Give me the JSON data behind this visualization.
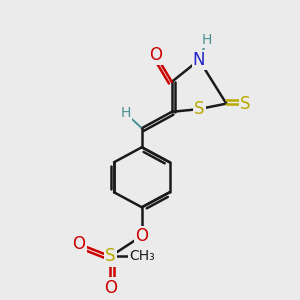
{
  "bg_color": "#ebebeb",
  "bond_color": "#1a1a1a",
  "bond_width": 1.8,
  "dbo": 0.018,
  "colors": {
    "S": "#b8a800",
    "N": "#2222cc",
    "O": "#cc0000",
    "H": "#4a9090",
    "C": "#1a1a1a"
  }
}
